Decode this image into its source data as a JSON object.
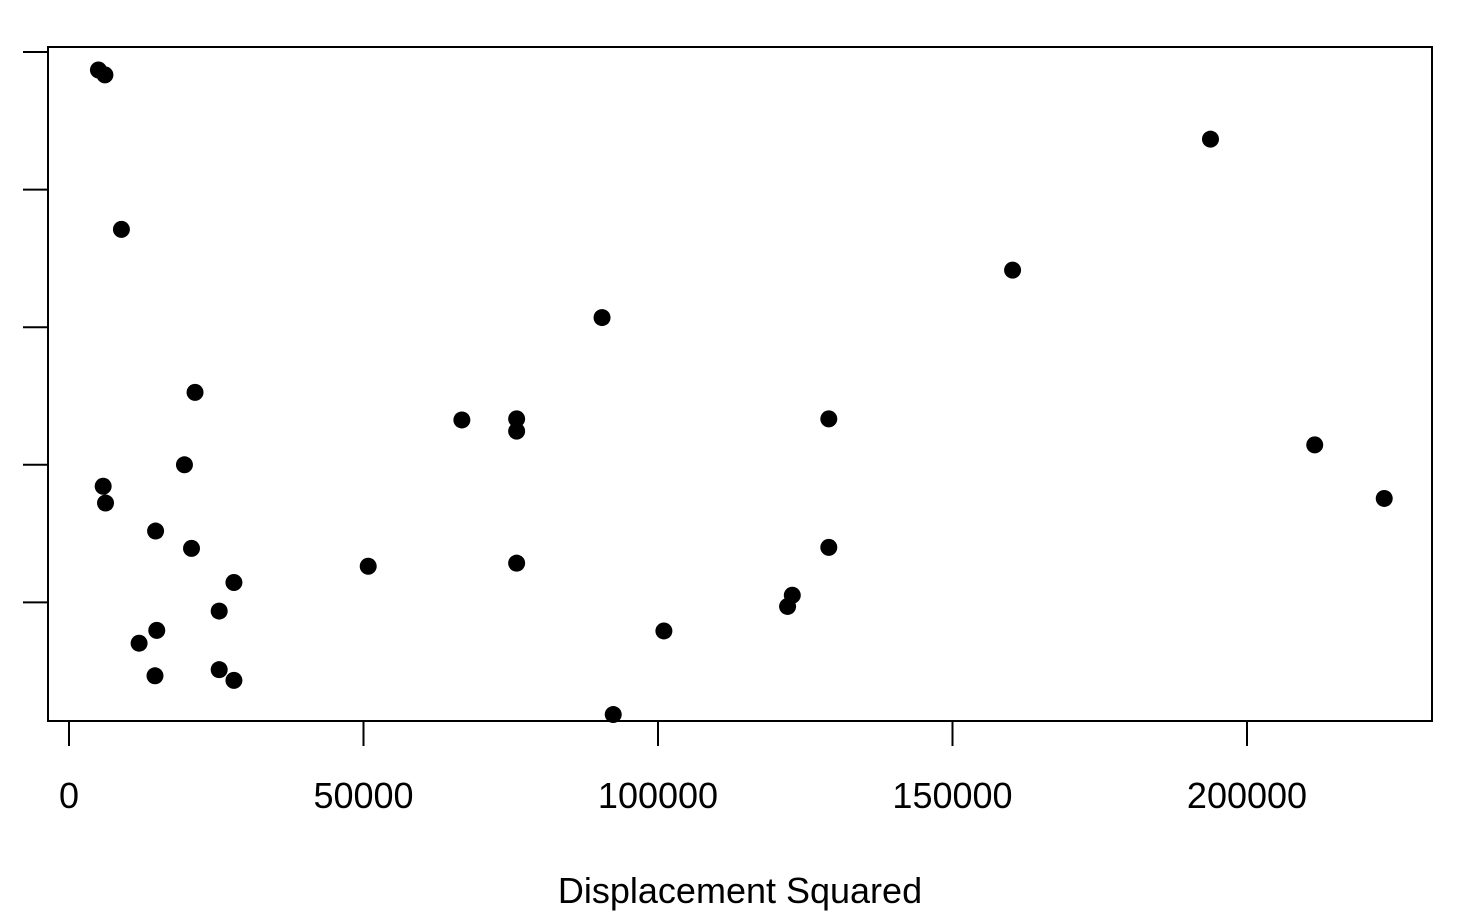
{
  "chart_data": {
    "type": "scatter",
    "title": "",
    "xlabel": "Displacement Squared",
    "ylabel": "",
    "xlim": [
      -3400,
      232000
    ],
    "ylim": [
      0,
      1
    ],
    "x_ticks": [
      0,
      50000,
      100000,
      150000,
      200000
    ],
    "x_tick_labels": [
      "0",
      "50000",
      "100000",
      "150000",
      "200000"
    ],
    "y_ticks": [
      0.2,
      0.4,
      0.6,
      0.8,
      1.0
    ],
    "y_tick_labels": [
      "",
      "",
      "",
      "",
      ""
    ],
    "grid": false,
    "legend": "none",
    "marker_color": "#000000",
    "series": [
      {
        "points": [
          [
            5000,
            0.9738
          ],
          [
            6100,
            0.9667
          ],
          [
            8900,
            0.7422
          ],
          [
            21400,
            0.5053
          ],
          [
            19600,
            0.4
          ],
          [
            5800,
            0.3688
          ],
          [
            6200,
            0.3444
          ],
          [
            14700,
            0.3037
          ],
          [
            20800,
            0.2785
          ],
          [
            28000,
            0.2289
          ],
          [
            50800,
            0.2526
          ],
          [
            25500,
            0.1874
          ],
          [
            14900,
            0.1593
          ],
          [
            11900,
            0.1407
          ],
          [
            14600,
            0.0933
          ],
          [
            25500,
            0.1022
          ],
          [
            28000,
            0.0867
          ],
          [
            66700,
            0.4652
          ],
          [
            76000,
            0.4667
          ],
          [
            76000,
            0.4489
          ],
          [
            76000,
            0.257
          ],
          [
            90500,
            0.614
          ],
          [
            92400,
            0.037
          ],
          [
            101000,
            0.1585
          ],
          [
            122000,
            0.1941
          ],
          [
            122800,
            0.2104
          ],
          [
            129000,
            0.4667
          ],
          [
            129000,
            0.28
          ],
          [
            160200,
            0.683
          ],
          [
            193800,
            0.8733
          ],
          [
            211500,
            0.429
          ],
          [
            223300,
            0.3511
          ]
        ]
      }
    ]
  }
}
